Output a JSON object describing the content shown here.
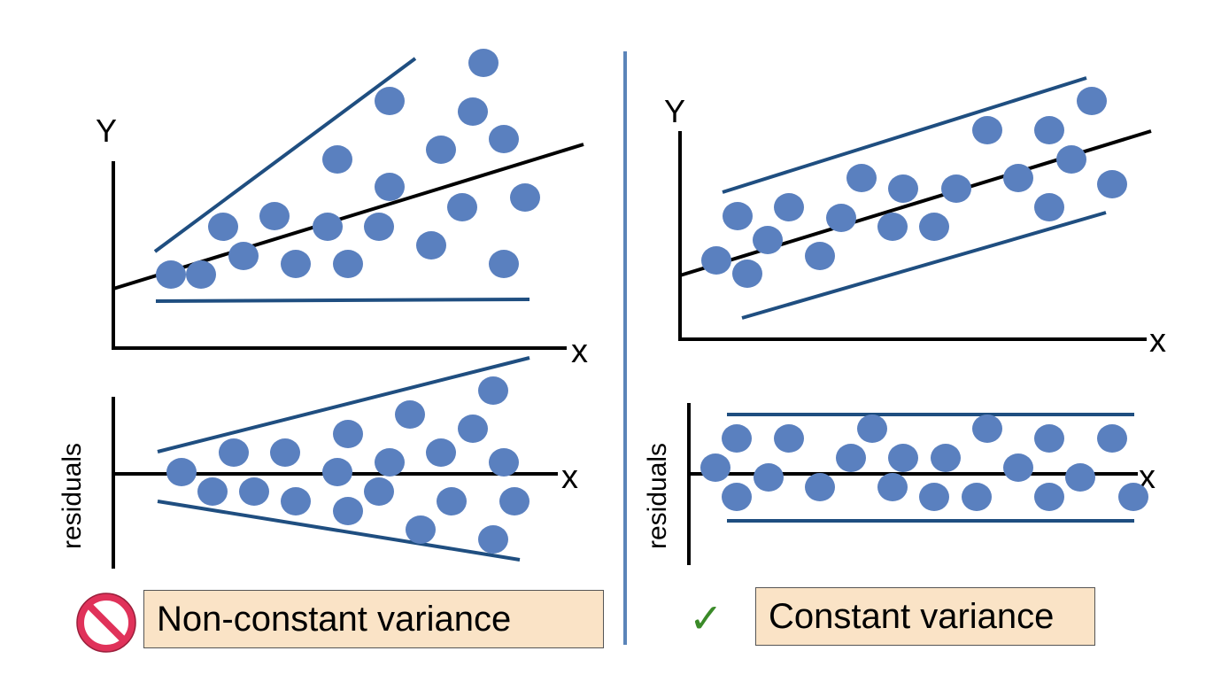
{
  "left_panel": {
    "top_plot": {
      "y_label": "Y",
      "x_label": "x"
    },
    "residual_plot": {
      "y_label": "residuals",
      "x_label": "x"
    },
    "caption": "Non-constant variance",
    "status_icon": "no-entry-icon"
  },
  "right_panel": {
    "top_plot": {
      "y_label": "Y",
      "x_label": "x"
    },
    "residual_plot": {
      "y_label": "residuals",
      "x_label": "x"
    },
    "caption": "Constant variance",
    "status_icon": "checkmark-icon",
    "check_glyph": "✓"
  },
  "colors": {
    "point": "#5a80bf",
    "envelope": "#1f4e80",
    "axis": "#000000",
    "divider": "#5b84b9",
    "caption_bg": "#fae3c6",
    "no_icon": "#e0325a",
    "check": "#3a8a28"
  }
}
